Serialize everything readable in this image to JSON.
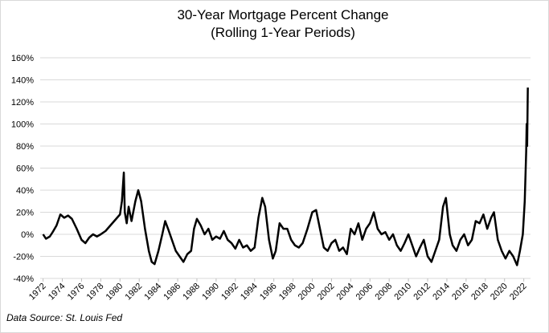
{
  "chart_data": {
    "type": "line",
    "title": "30-Year Mortgage Percent Change",
    "subtitle": "(Rolling 1-Year Periods)",
    "source": "Data Source: St. Louis Fed",
    "xlim": [
      1971.7,
      2022.7
    ],
    "ylim": [
      -40,
      160
    ],
    "grid": true,
    "xticks": [
      1972,
      1974,
      1976,
      1978,
      1980,
      1982,
      1984,
      1986,
      1988,
      1990,
      1992,
      1994,
      1996,
      1998,
      2000,
      2002,
      2004,
      2006,
      2008,
      2010,
      2012,
      2014,
      2016,
      2018,
      2020,
      2022
    ],
    "yticks": [
      {
        "value": -40,
        "label": "-40%"
      },
      {
        "value": -20,
        "label": "-20%"
      },
      {
        "value": 0,
        "label": "0%"
      },
      {
        "value": 20,
        "label": "20%"
      },
      {
        "value": 40,
        "label": "40%"
      },
      {
        "value": 60,
        "label": "60%"
      },
      {
        "value": 80,
        "label": "80%"
      },
      {
        "value": 100,
        "label": "100%"
      },
      {
        "value": 120,
        "label": "120%"
      },
      {
        "value": 140,
        "label": "140%"
      },
      {
        "value": 160,
        "label": "160%"
      }
    ],
    "color": "#000000",
    "x": [
      1972.0,
      1972.3,
      1972.7,
      1973.0,
      1973.4,
      1973.8,
      1974.2,
      1974.6,
      1975.0,
      1975.5,
      1976.0,
      1976.4,
      1976.8,
      1977.2,
      1977.6,
      1978.0,
      1978.5,
      1979.0,
      1979.5,
      1980.0,
      1980.2,
      1980.4,
      1980.5,
      1980.7,
      1980.9,
      1981.2,
      1981.6,
      1981.9,
      1982.2,
      1982.6,
      1983.0,
      1983.3,
      1983.6,
      1984.0,
      1984.4,
      1984.7,
      1985.0,
      1985.4,
      1985.8,
      1986.2,
      1986.6,
      1987.0,
      1987.4,
      1987.7,
      1988.0,
      1988.4,
      1988.8,
      1989.2,
      1989.6,
      1990.0,
      1990.4,
      1990.8,
      1991.2,
      1991.6,
      1992.0,
      1992.4,
      1992.8,
      1993.2,
      1993.6,
      1994.0,
      1994.4,
      1994.8,
      1995.1,
      1995.5,
      1995.9,
      1996.2,
      1996.6,
      1997.0,
      1997.4,
      1997.8,
      1998.2,
      1998.6,
      1999.0,
      1999.5,
      2000.0,
      2000.4,
      2000.8,
      2001.2,
      2001.6,
      2002.0,
      2002.4,
      2002.8,
      2003.2,
      2003.6,
      2004.0,
      2004.4,
      2004.8,
      2005.2,
      2005.6,
      2006.0,
      2006.4,
      2006.8,
      2007.2,
      2007.6,
      2008.0,
      2008.4,
      2008.8,
      2009.2,
      2009.6,
      2010.0,
      2010.4,
      2010.8,
      2011.2,
      2011.6,
      2012.0,
      2012.4,
      2012.8,
      2013.2,
      2013.6,
      2013.9,
      2014.3,
      2014.6,
      2015.0,
      2015.4,
      2015.8,
      2016.2,
      2016.6,
      2017.0,
      2017.4,
      2017.8,
      2018.2,
      2018.6,
      2018.9,
      2019.3,
      2019.7,
      2020.1,
      2020.5,
      2020.9,
      2021.3,
      2021.6,
      2021.9,
      2022.1,
      2022.25,
      2022.3,
      2022.35,
      2022.42
    ],
    "values": [
      0,
      -4,
      -2,
      2,
      8,
      18,
      15,
      17,
      14,
      5,
      -5,
      -8,
      -3,
      0,
      -2,
      0,
      3,
      8,
      13,
      18,
      30,
      56,
      20,
      10,
      25,
      12,
      30,
      40,
      30,
      5,
      -15,
      -25,
      -27,
      -15,
      0,
      12,
      5,
      -5,
      -15,
      -20,
      -25,
      -18,
      -15,
      5,
      14,
      8,
      0,
      5,
      -5,
      -2,
      -4,
      3,
      -5,
      -8,
      -13,
      -5,
      -12,
      -10,
      -15,
      -12,
      15,
      33,
      25,
      -5,
      -22,
      -15,
      10,
      5,
      5,
      -5,
      -10,
      -12,
      -8,
      5,
      20,
      22,
      5,
      -12,
      -15,
      -8,
      -5,
      -15,
      -12,
      -18,
      5,
      0,
      10,
      -5,
      5,
      10,
      20,
      5,
      0,
      2,
      -5,
      0,
      -10,
      -15,
      -8,
      0,
      -10,
      -20,
      -12,
      -5,
      -20,
      -25,
      -15,
      -5,
      25,
      33,
      0,
      -10,
      -15,
      -5,
      0,
      -10,
      -5,
      12,
      10,
      18,
      5,
      15,
      20,
      -5,
      -15,
      -22,
      -15,
      -20,
      -28,
      -15,
      0,
      30,
      75,
      100,
      80,
      133
    ]
  }
}
